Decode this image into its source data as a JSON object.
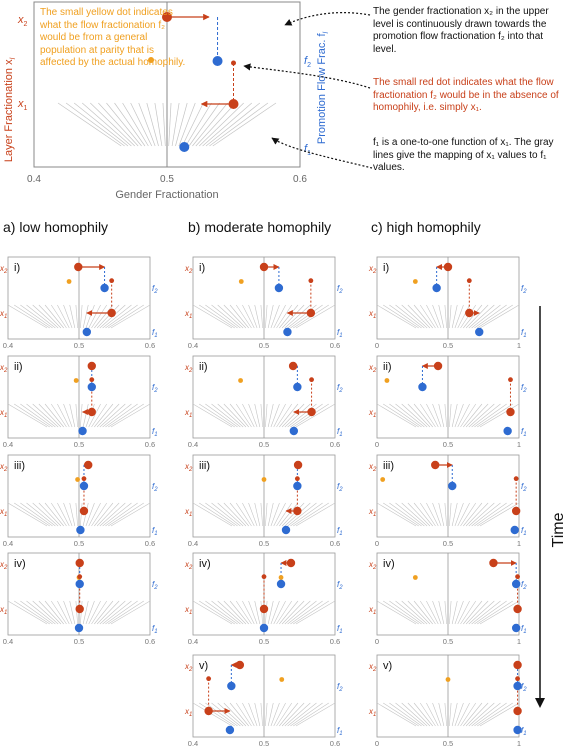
{
  "colors": {
    "red": "#c8401a",
    "blue": "#2e6bd1",
    "yellow": "#f0a020",
    "gray": "#c4c4c4",
    "axis": "#777777",
    "text": "#111111"
  },
  "legend_panel": {
    "x_axis_label": "Gender Fractionation",
    "y_axis_left_label": "Layer Fractionation x",
    "y_axis_left_sub": "l",
    "y_axis_right_label": "Promotion Flow Frac. f",
    "y_axis_right_sub": "l",
    "x_ticks": [
      "0.4",
      "0.5",
      "0.6"
    ],
    "label_x2": "x",
    "label_x2_sub": "2",
    "label_x1": "x",
    "label_x1_sub": "1",
    "label_f2": "f",
    "label_f2_sub": "2",
    "label_f1": "f",
    "label_f1_sub": "1"
  },
  "annotations": {
    "yellow_note": "The small yellow dot indicates what the flow fractionation f₂ would be from a general population at parity that is affected by the actual homophily.",
    "gender_note": "The gender fractionation x₂ in the upper level is continuously drawn towards the promotion flow fractionation f₂ into that level.",
    "red_note": "The small red dot indicates what the flow fractionation f₂ would be in the absence of homophily, i.e. simply x₁.",
    "f1_note": "f₁ is a one-to-one function of x₁. The gray lines give the mapping of x₁ values to f₁ values."
  },
  "columns": [
    {
      "title": "a) low homophily",
      "x_ticks": [
        "0.4",
        "0.5",
        "0.6"
      ]
    },
    {
      "title": "b) moderate homophily",
      "x_ticks": [
        "0.4",
        "0.5",
        "0.6"
      ]
    },
    {
      "title": "c) high homophily",
      "x_ticks": [
        "0",
        "0.5",
        "1"
      ]
    }
  ],
  "row_labels": [
    "i)",
    "ii)",
    "iii)",
    "iv)",
    "v)"
  ],
  "small_axis_labels": {
    "x2": "x",
    "x2_sub": "2",
    "x1": "x",
    "x1_sub": "1",
    "f2": "f",
    "f2_sub": "2",
    "f1": "f",
    "f1_sub": "1"
  },
  "time_label": "Time",
  "chart_data": {
    "type": "scatter",
    "legend_panel": {
      "xlim": [
        0.4,
        0.6
      ],
      "x2": 0.5,
      "x1": 0.55,
      "f2": 0.538,
      "f1": 0.513,
      "yellow": 0.488,
      "red_small": 0.55
    },
    "panels": [
      {
        "column": 0,
        "row": 0,
        "xlim": [
          0.4,
          0.6
        ],
        "x2": 0.499,
        "f2": 0.536,
        "x1": 0.546,
        "f1": 0.511,
        "yellow": 0.486,
        "red_small": 0.546
      },
      {
        "column": 0,
        "row": 1,
        "xlim": [
          0.4,
          0.6
        ],
        "x2": 0.518,
        "f2": 0.518,
        "x1": 0.518,
        "f1": 0.505,
        "yellow": 0.496,
        "red_small": 0.518
      },
      {
        "column": 0,
        "row": 2,
        "xlim": [
          0.4,
          0.6
        ],
        "x2": 0.513,
        "f2": 0.507,
        "x1": 0.507,
        "f1": 0.502,
        "yellow": 0.498,
        "red_small": 0.507
      },
      {
        "column": 0,
        "row": 3,
        "xlim": [
          0.4,
          0.6
        ],
        "x2": 0.501,
        "f2": 0.501,
        "x1": 0.501,
        "f1": 0.5,
        "yellow": 0.5,
        "red_small": 0.501
      },
      {
        "column": 1,
        "row": 0,
        "xlim": [
          0.4,
          0.6
        ],
        "x2": 0.5,
        "f2": 0.521,
        "x1": 0.566,
        "f1": 0.533,
        "yellow": 0.468,
        "red_small": 0.566
      },
      {
        "column": 1,
        "row": 1,
        "xlim": [
          0.4,
          0.6
        ],
        "x2": 0.541,
        "f2": 0.547,
        "x1": 0.567,
        "f1": 0.542,
        "yellow": 0.467,
        "red_small": 0.567
      },
      {
        "column": 1,
        "row": 2,
        "xlim": [
          0.4,
          0.6
        ],
        "x2": 0.548,
        "f2": 0.547,
        "x1": 0.547,
        "f1": 0.531,
        "yellow": 0.5,
        "red_small": 0.547
      },
      {
        "column": 1,
        "row": 3,
        "xlim": [
          0.4,
          0.6
        ],
        "x2": 0.538,
        "f2": 0.524,
        "x1": 0.5,
        "f1": 0.5,
        "yellow": 0.524,
        "red_small": 0.5
      },
      {
        "column": 1,
        "row": 4,
        "xlim": [
          0.4,
          0.6
        ],
        "x2": 0.466,
        "f2": 0.454,
        "x1": 0.422,
        "f1": 0.452,
        "yellow": 0.525,
        "red_small": 0.422
      },
      {
        "column": 2,
        "row": 0,
        "xlim": [
          0,
          1
        ],
        "x2": 0.5,
        "f2": 0.42,
        "x1": 0.65,
        "f1": 0.72,
        "yellow": 0.27,
        "red_small": 0.65
      },
      {
        "column": 2,
        "row": 1,
        "xlim": [
          0,
          1
        ],
        "x2": 0.43,
        "f2": 0.32,
        "x1": 0.94,
        "f1": 0.92,
        "yellow": 0.07,
        "red_small": 0.94
      },
      {
        "column": 2,
        "row": 2,
        "xlim": [
          0,
          1
        ],
        "x2": 0.41,
        "f2": 0.53,
        "x1": 0.98,
        "f1": 0.97,
        "yellow": 0.04,
        "red_small": 0.98
      },
      {
        "column": 2,
        "row": 3,
        "xlim": [
          0,
          1
        ],
        "x2": 0.82,
        "f2": 0.98,
        "x1": 0.99,
        "f1": 0.98,
        "yellow": 0.27,
        "red_small": 0.99
      },
      {
        "column": 2,
        "row": 4,
        "xlim": [
          0,
          1
        ],
        "x2": 0.99,
        "f2": 0.99,
        "x1": 0.99,
        "f1": 0.99,
        "yellow": 0.5,
        "red_small": 0.99
      }
    ]
  }
}
